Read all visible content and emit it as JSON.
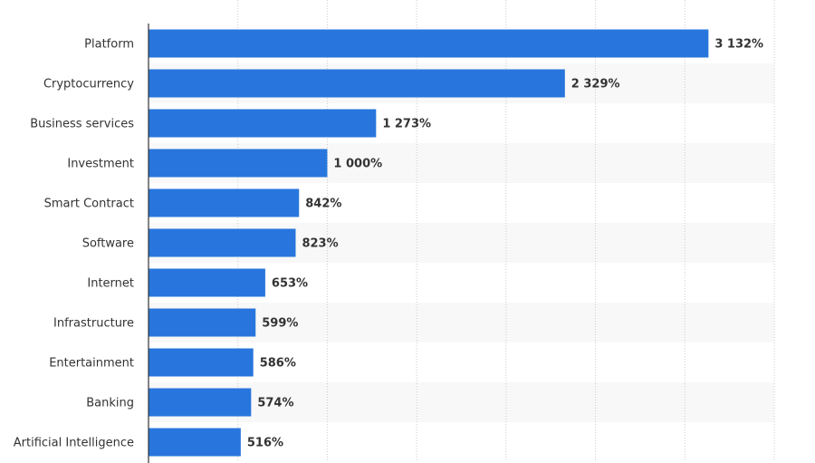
{
  "chart_data": {
    "type": "bar",
    "orientation": "horizontal",
    "categories": [
      "Platform",
      "Cryptocurrency",
      "Business services",
      "Investment",
      "Smart Contract",
      "Software",
      "Internet",
      "Infrastructure",
      "Entertainment",
      "Banking",
      "Artificial Intelligence"
    ],
    "values": [
      3132,
      2329,
      1273,
      1000,
      842,
      823,
      653,
      599,
      586,
      574,
      516
    ],
    "value_labels": [
      "3 132%",
      "2 329%",
      "1 273%",
      "1 000%",
      "842%",
      "823%",
      "653%",
      "599%",
      "586%",
      "574%",
      "516%"
    ],
    "title": "",
    "xlabel": "",
    "ylabel": "",
    "xlim": [
      0,
      3500
    ],
    "grid": true,
    "grid_step": 500,
    "bar_color": "#2876dd",
    "stripe_color": "#f8f8f8"
  }
}
